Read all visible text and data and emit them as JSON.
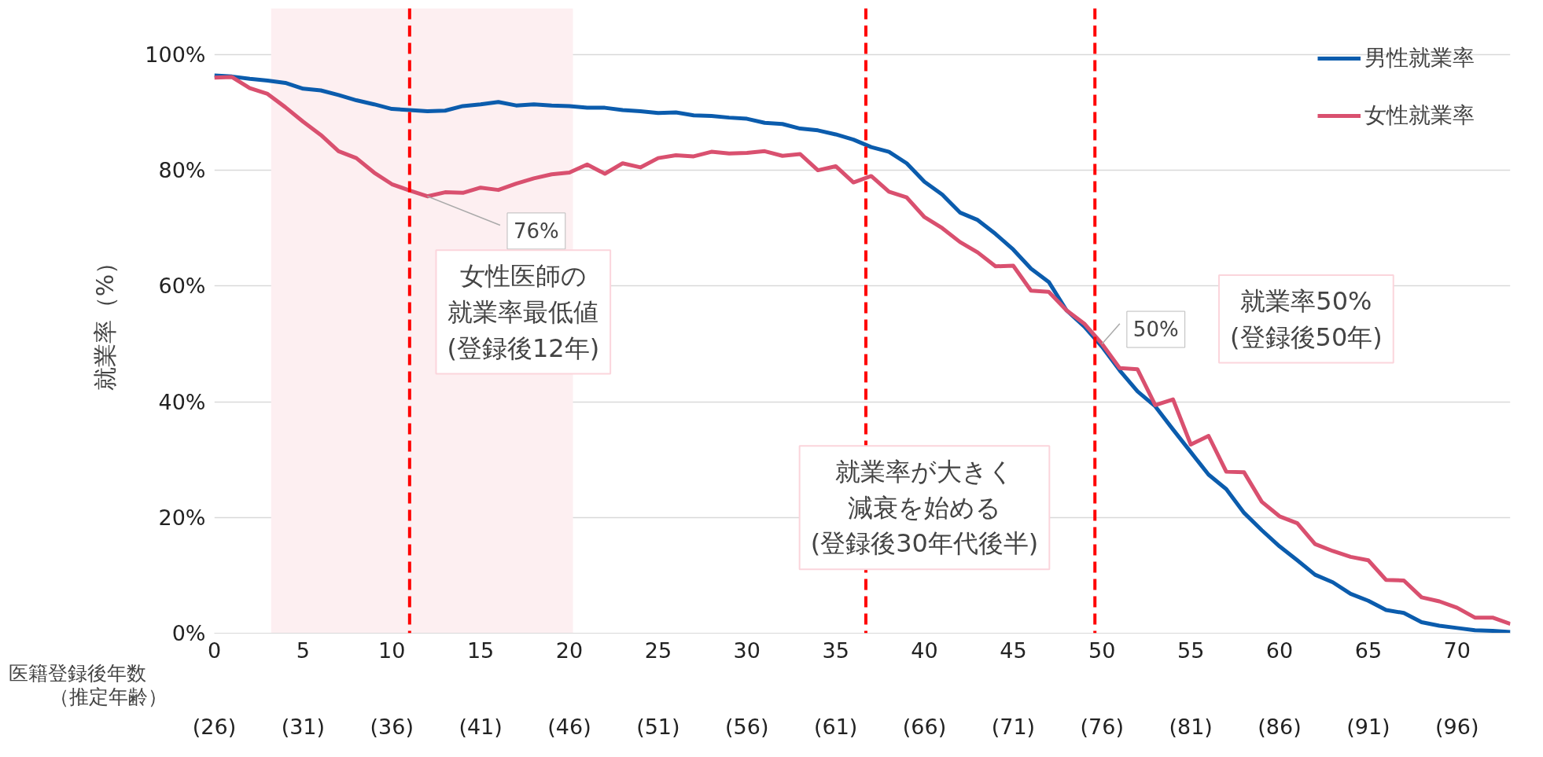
{
  "chart_data": {
    "type": "line",
    "xlabel": "医籍登録後年数",
    "x2label": "（推定年齢）",
    "ylabel": "就業率（%）",
    "x2lim": [
      26,
      99
    ],
    "x2ticks": [
      {
        "value": 26,
        "label": "(26)"
      },
      {
        "value": 31,
        "label": "(31)"
      },
      {
        "value": 36,
        "label": "(36)"
      },
      {
        "value": 41,
        "label": "(41)"
      },
      {
        "value": 46,
        "label": "(46)"
      },
      {
        "value": 51,
        "label": "(51)"
      },
      {
        "value": 56,
        "label": "(56)"
      },
      {
        "value": 61,
        "label": "(61)"
      },
      {
        "value": 66,
        "label": "(66)"
      },
      {
        "value": 71,
        "label": "(71)"
      },
      {
        "value": 76,
        "label": "(76)"
      },
      {
        "value": 81,
        "label": "(81)"
      },
      {
        "value": 86,
        "label": "(86)"
      },
      {
        "value": 91,
        "label": "(91)"
      },
      {
        "value": 96,
        "label": "(96)"
      }
    ],
    "x": [
      0,
      1,
      2,
      3,
      4,
      5,
      6,
      7,
      8,
      9,
      10,
      11,
      12,
      13,
      14,
      15,
      16,
      17,
      18,
      19,
      20,
      21,
      22,
      23,
      24,
      25,
      26,
      27,
      28,
      29,
      30,
      31,
      32,
      33,
      34,
      35,
      36,
      37,
      38,
      39,
      40,
      41,
      42,
      43,
      44,
      45,
      46,
      47,
      48,
      49,
      50,
      51,
      52,
      53,
      54,
      55,
      56,
      57,
      58,
      59,
      60,
      61,
      62,
      63,
      64,
      65,
      66,
      67,
      68,
      69,
      70,
      71,
      72,
      73
    ],
    "series": [
      {
        "name": "男性就業率",
        "color": "#0b5cad",
        "values": [
          96.4,
          96.2,
          95.8,
          95.5,
          95.1,
          94.1,
          93.8,
          93.0,
          92.1,
          91.4,
          90.6,
          90.4,
          90.2,
          90.3,
          91.1,
          91.4,
          91.8,
          91.2,
          91.4,
          91.2,
          91.1,
          90.8,
          90.8,
          90.4,
          90.2,
          89.9,
          90.0,
          89.5,
          89.4,
          89.1,
          88.9,
          88.2,
          88.0,
          87.2,
          86.9,
          86.2,
          85.3,
          84.0,
          83.2,
          81.2,
          78.0,
          75.8,
          72.7,
          71.4,
          69.0,
          66.3,
          63.0,
          60.7,
          55.8,
          53.0,
          49.5,
          45.4,
          41.8,
          39.2,
          35.2,
          31.3,
          27.4,
          24.9,
          20.8,
          17.8,
          15.0,
          12.6,
          10.1,
          8.8,
          6.8,
          5.6,
          4.0,
          3.5,
          1.9,
          1.3,
          0.9,
          0.5,
          0.4,
          0.2
        ]
      },
      {
        "name": "女性就業率",
        "color": "#d9506f",
        "values": [
          96.0,
          96.1,
          94.2,
          93.2,
          90.9,
          88.4,
          86.1,
          83.3,
          82.1,
          79.6,
          77.6,
          76.5,
          75.5,
          76.2,
          76.1,
          77.0,
          76.6,
          77.7,
          78.6,
          79.3,
          79.6,
          81.0,
          79.4,
          81.2,
          80.5,
          82.1,
          82.6,
          82.4,
          83.2,
          82.9,
          83.0,
          83.3,
          82.5,
          82.8,
          80.0,
          80.7,
          77.9,
          79.0,
          76.3,
          75.3,
          71.9,
          70.0,
          67.6,
          65.8,
          63.4,
          63.5,
          59.2,
          59.0,
          55.8,
          53.5,
          50.0,
          45.8,
          45.6,
          39.4,
          40.4,
          32.6,
          34.1,
          27.9,
          27.8,
          22.7,
          20.2,
          19.0,
          15.4,
          14.2,
          13.2,
          12.6,
          9.2,
          9.1,
          6.2,
          5.5,
          4.4,
          2.7,
          2.7,
          1.6
        ]
      }
    ],
    "xlim": [
      0,
      73
    ],
    "xticks": [
      0,
      5,
      10,
      15,
      20,
      25,
      30,
      35,
      40,
      45,
      50,
      55,
      60,
      65,
      70
    ],
    "ylim": [
      0,
      108
    ],
    "yticks": [
      {
        "value": 0,
        "label": "0%"
      },
      {
        "value": 20,
        "label": "20%"
      },
      {
        "value": 40,
        "label": "40%"
      },
      {
        "value": 60,
        "label": "60%"
      },
      {
        "value": 80,
        "label": "80%"
      },
      {
        "value": 100,
        "label": "100%"
      }
    ],
    "grid": "y",
    "legend": "top right",
    "marker": "none",
    "line_style": "solid",
    "ref_lines": [
      {
        "axis": "x",
        "value": 11,
        "label": null,
        "color": "#ff0000",
        "line_style": "dashed"
      },
      {
        "axis": "x",
        "value": 36.7,
        "label": null,
        "color": "#ff0000",
        "line_style": "dashed"
      },
      {
        "axis": "x",
        "value": 49.6,
        "label": null,
        "color": "#ff0000",
        "line_style": "dashed"
      }
    ],
    "bands": [
      {
        "axis": "x",
        "from": 3.2,
        "to": 20.2,
        "label": null,
        "color": "#fdeff1"
      }
    ],
    "annotations": [
      {
        "text": "76%",
        "x": 12,
        "y": 75.5
      },
      {
        "text": "50%",
        "x": 50,
        "y": 50
      },
      "女性医師の就業率最低値(登録後12年)",
      "就業率が大きく減衰を始める(登録後30年代後半)",
      "就業率50%(登録後50年)"
    ]
  }
}
